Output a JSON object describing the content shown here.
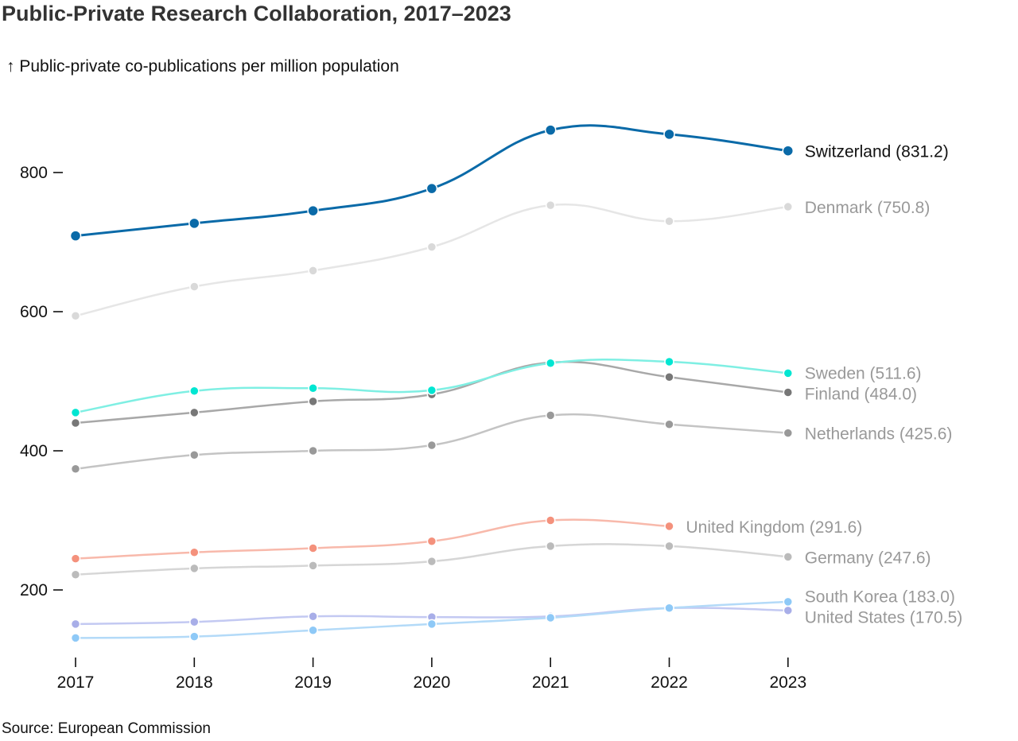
{
  "chart_data": {
    "type": "line",
    "title": "Public-Private Research Collaboration, 2017–2023",
    "ylabel": "↑ Public-private co-publications per million population",
    "source": "Source: European Commission",
    "x": [
      2017,
      2018,
      2019,
      2020,
      2021,
      2022,
      2023
    ],
    "x_tick_labels": [
      "2017",
      "2018",
      "2019",
      "2020",
      "2021",
      "2022",
      "2023"
    ],
    "y_ticks": [
      200,
      400,
      600,
      800
    ],
    "y_tick_labels": [
      "200",
      "400",
      "600",
      "800"
    ],
    "ylim": [
      115,
      905
    ],
    "grid": false,
    "legend": "none (end-of-line labels)",
    "series": [
      {
        "name": "Denmark",
        "color": "#e6e6e6",
        "dot_color": "#d9d9d9",
        "label_color": "#999999",
        "end_label": "Denmark (750.8)",
        "x": [
          2017,
          2018,
          2019,
          2020,
          2021,
          2022,
          2023
        ],
        "values": [
          594,
          636,
          659,
          693,
          753,
          730,
          750.8
        ]
      },
      {
        "name": "Netherlands",
        "color": "#c4c4c4",
        "dot_color": "#999999",
        "label_color": "#999999",
        "end_label": "Netherlands (425.6)",
        "x": [
          2017,
          2018,
          2019,
          2020,
          2021,
          2022,
          2023
        ],
        "values": [
          374,
          394,
          400,
          408,
          451,
          438,
          425.6
        ]
      },
      {
        "name": "Finland",
        "color": "#a8a8a8",
        "dot_color": "#777777",
        "label_color": "#999999",
        "end_label": "Finland (484.0)",
        "x": [
          2017,
          2018,
          2019,
          2020,
          2021,
          2022,
          2023
        ],
        "values": [
          440,
          455,
          471,
          481,
          527,
          506,
          484.0
        ]
      },
      {
        "name": "Sweden",
        "color": "#7fefe3",
        "dot_color": "#00e6d2",
        "label_color": "#999999",
        "end_label": "Sweden (511.6)",
        "x": [
          2017,
          2018,
          2019,
          2020,
          2021,
          2022,
          2023
        ],
        "values": [
          455,
          486,
          490,
          487,
          526,
          528,
          511.6
        ]
      },
      {
        "name": "Germany",
        "color": "#d6d6d6",
        "dot_color": "#bbbbbb",
        "label_color": "#999999",
        "end_label": "Germany (247.6)",
        "x": [
          2017,
          2018,
          2019,
          2020,
          2021,
          2022,
          2023
        ],
        "values": [
          222,
          231,
          235,
          241,
          263,
          263,
          247.6
        ]
      },
      {
        "name": "United Kingdom",
        "color": "#f8b9ab",
        "dot_color": "#f4917c",
        "label_color": "#999999",
        "end_label": "United Kingdom (291.6)",
        "x": [
          2017,
          2018,
          2019,
          2020,
          2021,
          2022
        ],
        "values": [
          245,
          254,
          260,
          270,
          300,
          291.6
        ]
      },
      {
        "name": "United States",
        "color": "#c3c9f2",
        "dot_color": "#a8aee8",
        "label_color": "#999999",
        "end_label": "United States (170.5)",
        "x": [
          2017,
          2018,
          2019,
          2020,
          2021,
          2022,
          2023
        ],
        "values": [
          151,
          154,
          162,
          161,
          162,
          174,
          170.5
        ]
      },
      {
        "name": "South Korea",
        "color": "#b3daf8",
        "dot_color": "#8ec9f7",
        "label_color": "#999999",
        "end_label": "South Korea (183.0)",
        "x": [
          2017,
          2018,
          2019,
          2020,
          2021,
          2022,
          2023
        ],
        "values": [
          131,
          133,
          142,
          151,
          160,
          174,
          183.0
        ]
      },
      {
        "name": "Switzerland",
        "color": "#0a6aa8",
        "dot_color": "#0a6aa8",
        "label_color": "#111111",
        "end_label": "Switzerland (831.2)",
        "highlight": true,
        "x": [
          2017,
          2018,
          2019,
          2020,
          2021,
          2022,
          2023
        ],
        "values": [
          709,
          727,
          745,
          777,
          861,
          855,
          831.2
        ]
      }
    ]
  }
}
